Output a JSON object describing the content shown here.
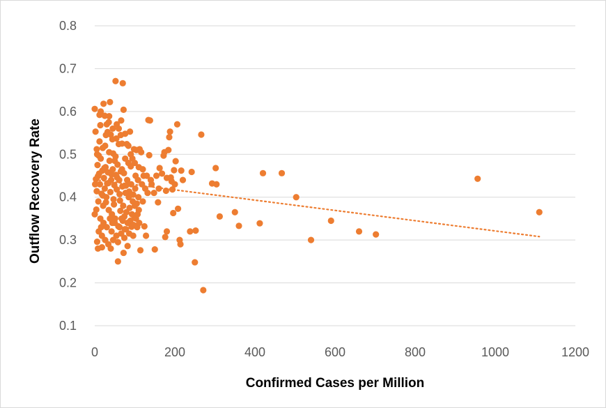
{
  "chart_data": {
    "type": "scatter",
    "title": "",
    "xlabel": "Confirmed Cases per Million",
    "ylabel": "Outflow Recovery Rate",
    "xlim": [
      0,
      1200
    ],
    "ylim": [
      0.1,
      0.8
    ],
    "x_ticks": [
      "0",
      "200",
      "400",
      "600",
      "800",
      "1000",
      "1200"
    ],
    "y_ticks": [
      "0.1",
      "0.2",
      "0.3",
      "0.4",
      "0.5",
      "0.6",
      "0.7",
      "0.8"
    ],
    "grid": "horizontal",
    "legend": "none",
    "marker_color": "#ED7D31",
    "trendline": {
      "type": "linear",
      "style": "dotted",
      "x": [
        0,
        1110
      ],
      "y": [
        0.441,
        0.308
      ]
    },
    "series": [
      {
        "points": [
          [
            0,
            0.606
          ],
          [
            2,
            0.553
          ],
          [
            1,
            0.43
          ],
          [
            0,
            0.36
          ],
          [
            4,
            0.371
          ],
          [
            6,
            0.296
          ],
          [
            5,
            0.512
          ],
          [
            8,
            0.449
          ],
          [
            10,
            0.497
          ],
          [
            12,
            0.592
          ],
          [
            14,
            0.568
          ],
          [
            16,
            0.33
          ],
          [
            18,
            0.283
          ],
          [
            20,
            0.404
          ],
          [
            22,
            0.618
          ],
          [
            24,
            0.468
          ],
          [
            26,
            0.52
          ],
          [
            28,
            0.388
          ],
          [
            30,
            0.57
          ],
          [
            32,
            0.552
          ],
          [
            34,
            0.433
          ],
          [
            36,
            0.589
          ],
          [
            38,
            0.622
          ],
          [
            40,
            0.546
          ],
          [
            42,
            0.453
          ],
          [
            44,
            0.34
          ],
          [
            46,
            0.502
          ],
          [
            48,
            0.383
          ],
          [
            50,
            0.485
          ],
          [
            52,
            0.671
          ],
          [
            54,
            0.537
          ],
          [
            56,
            0.446
          ],
          [
            58,
            0.295
          ],
          [
            60,
            0.524
          ],
          [
            62,
            0.407
          ],
          [
            64,
            0.368
          ],
          [
            66,
            0.579
          ],
          [
            68,
            0.465
          ],
          [
            70,
            0.666
          ],
          [
            72,
            0.604
          ],
          [
            74,
            0.355
          ],
          [
            76,
            0.548
          ],
          [
            78,
            0.427
          ],
          [
            80,
            0.524
          ],
          [
            82,
            0.286
          ],
          [
            84,
            0.48
          ],
          [
            86,
            0.413
          ],
          [
            88,
            0.553
          ],
          [
            90,
            0.472
          ],
          [
            92,
            0.331
          ],
          [
            94,
            0.49
          ],
          [
            96,
            0.406
          ],
          [
            98,
            0.512
          ],
          [
            100,
            0.38
          ],
          [
            102,
            0.45
          ],
          [
            104,
            0.51
          ],
          [
            106,
            0.33
          ],
          [
            108,
            0.44
          ],
          [
            110,
            0.37
          ],
          [
            112,
            0.512
          ],
          [
            114,
            0.276
          ],
          [
            116,
            0.505
          ],
          [
            118,
            0.43
          ],
          [
            120,
            0.39
          ],
          [
            122,
            0.45
          ],
          [
            124,
            0.332
          ],
          [
            126,
            0.42
          ],
          [
            128,
            0.31
          ],
          [
            130,
            0.45
          ],
          [
            132,
            0.41
          ],
          [
            134,
            0.58
          ],
          [
            136,
            0.498
          ],
          [
            138,
            0.579
          ],
          [
            142,
            0.43
          ],
          [
            148,
            0.41
          ],
          [
            150,
            0.278
          ],
          [
            154,
            0.45
          ],
          [
            158,
            0.388
          ],
          [
            162,
            0.468
          ],
          [
            168,
            0.455
          ],
          [
            172,
            0.497
          ],
          [
            174,
            0.505
          ],
          [
            176,
            0.307
          ],
          [
            178,
            0.415
          ],
          [
            180,
            0.32
          ],
          [
            184,
            0.51
          ],
          [
            186,
            0.54
          ],
          [
            188,
            0.553
          ],
          [
            190,
            0.446
          ],
          [
            192,
            0.437
          ],
          [
            194,
            0.418
          ],
          [
            196,
            0.363
          ],
          [
            198,
            0.463
          ],
          [
            202,
            0.484
          ],
          [
            206,
            0.57
          ],
          [
            208,
            0.373
          ],
          [
            212,
            0.3
          ],
          [
            214,
            0.29
          ],
          [
            216,
            0.462
          ],
          [
            238,
            0.32
          ],
          [
            242,
            0.459
          ],
          [
            250,
            0.248
          ],
          [
            252,
            0.322
          ],
          [
            266,
            0.546
          ],
          [
            271,
            0.183
          ],
          [
            293,
            0.432
          ],
          [
            302,
            0.468
          ],
          [
            304,
            0.43
          ],
          [
            312,
            0.355
          ],
          [
            350,
            0.365
          ],
          [
            360,
            0.333
          ],
          [
            412,
            0.339
          ],
          [
            420,
            0.456
          ],
          [
            467,
            0.456
          ],
          [
            503,
            0.4
          ],
          [
            540,
            0.3
          ],
          [
            590,
            0.345
          ],
          [
            660,
            0.32
          ],
          [
            702,
            0.313
          ],
          [
            956,
            0.443
          ],
          [
            1110,
            0.365
          ],
          [
            3,
            0.442
          ],
          [
            5,
            0.414
          ],
          [
            7,
            0.475
          ],
          [
            9,
            0.39
          ],
          [
            11,
            0.455
          ],
          [
            13,
            0.43
          ],
          [
            15,
            0.49
          ],
          [
            17,
            0.408
          ],
          [
            19,
            0.462
          ],
          [
            21,
            0.38
          ],
          [
            23,
            0.445
          ],
          [
            25,
            0.42
          ],
          [
            27,
            0.47
          ],
          [
            29,
            0.4
          ],
          [
            31,
            0.432
          ],
          [
            33,
            0.458
          ],
          [
            35,
            0.37
          ],
          [
            37,
            0.485
          ],
          [
            39,
            0.412
          ],
          [
            41,
            0.44
          ],
          [
            43,
            0.36
          ],
          [
            45,
            0.465
          ],
          [
            47,
            0.395
          ],
          [
            49,
            0.428
          ],
          [
            51,
            0.35
          ],
          [
            53,
            0.452
          ],
          [
            55,
            0.418
          ],
          [
            57,
            0.476
          ],
          [
            59,
            0.332
          ],
          [
            61,
            0.44
          ],
          [
            63,
            0.392
          ],
          [
            65,
            0.46
          ],
          [
            67,
            0.35
          ],
          [
            69,
            0.425
          ],
          [
            71,
            0.38
          ],
          [
            73,
            0.456
          ],
          [
            75,
            0.325
          ],
          [
            77,
            0.41
          ],
          [
            79,
            0.365
          ],
          [
            81,
            0.44
          ],
          [
            83,
            0.34
          ],
          [
            85,
            0.4
          ],
          [
            87,
            0.375
          ],
          [
            89,
            0.345
          ],
          [
            91,
            0.43
          ],
          [
            93,
            0.36
          ],
          [
            95,
            0.39
          ],
          [
            97,
            0.335
          ],
          [
            99,
            0.355
          ],
          [
            101,
            0.42
          ],
          [
            103,
            0.35
          ],
          [
            105,
            0.385
          ],
          [
            107,
            0.36
          ],
          [
            109,
            0.4
          ],
          [
            111,
            0.34
          ],
          [
            10,
            0.32
          ],
          [
            14,
            0.35
          ],
          [
            18,
            0.31
          ],
          [
            22,
            0.34
          ],
          [
            26,
            0.3
          ],
          [
            30,
            0.33
          ],
          [
            34,
            0.29
          ],
          [
            38,
            0.35
          ],
          [
            42,
            0.32
          ],
          [
            46,
            0.3
          ],
          [
            50,
            0.34
          ],
          [
            54,
            0.31
          ],
          [
            58,
            0.25
          ],
          [
            62,
            0.33
          ],
          [
            66,
            0.315
          ],
          [
            70,
            0.345
          ],
          [
            74,
            0.305
          ],
          [
            78,
            0.325
          ],
          [
            82,
            0.34
          ],
          [
            86,
            0.315
          ],
          [
            6,
            0.5
          ],
          [
            12,
            0.53
          ],
          [
            20,
            0.515
          ],
          [
            28,
            0.545
          ],
          [
            36,
            0.505
          ],
          [
            44,
            0.535
          ],
          [
            52,
            0.495
          ],
          [
            60,
            0.56
          ],
          [
            68,
            0.525
          ],
          [
            76,
            0.49
          ],
          [
            84,
            0.52
          ],
          [
            90,
            0.5
          ],
          [
            100,
            0.48
          ],
          [
            110,
            0.47
          ],
          [
            120,
            0.465
          ],
          [
            140,
            0.44
          ],
          [
            160,
            0.42
          ],
          [
            180,
            0.445
          ],
          [
            200,
            0.43
          ],
          [
            220,
            0.44
          ],
          [
            15,
            0.6
          ],
          [
            25,
            0.59
          ],
          [
            35,
            0.575
          ],
          [
            45,
            0.56
          ],
          [
            55,
            0.57
          ],
          [
            65,
            0.545
          ],
          [
            8,
            0.28
          ],
          [
            40,
            0.28
          ],
          [
            72,
            0.27
          ],
          [
            96,
            0.31
          ]
        ]
      }
    ]
  }
}
